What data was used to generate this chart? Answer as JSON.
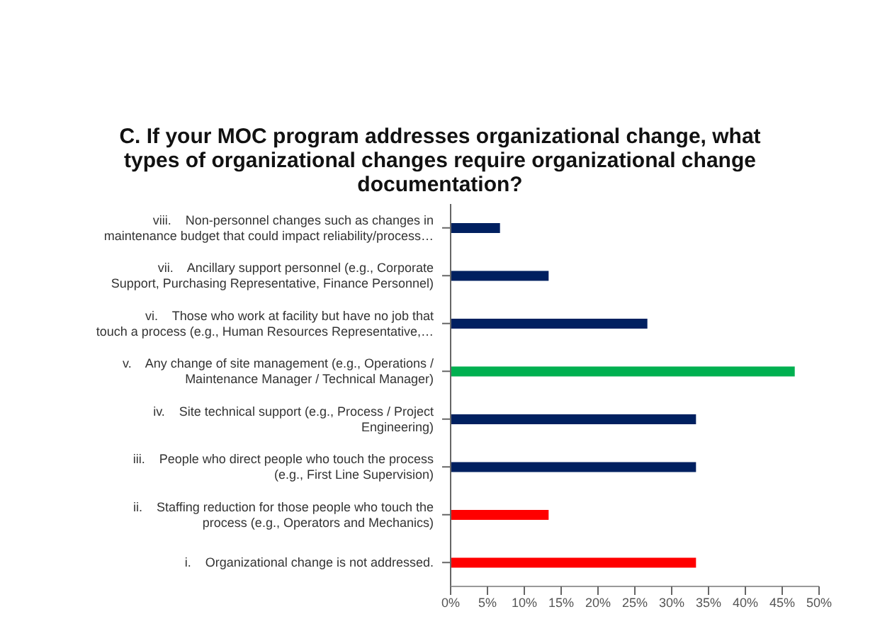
{
  "chart_data": {
    "type": "bar",
    "orientation": "horizontal",
    "title": "C. If your MOC program addresses organizational change, what types of organizational changes require organizational change documentation?",
    "categories": [
      "viii.    Non-personnel changes such as changes in maintenance budget that could impact reliability/process…",
      "vii.    Ancillary support personnel (e.g., Corporate Support, Purchasing Representative, Finance Personnel)",
      "vi.    Those who work at facility but have no job that touch a process (e.g., Human Resources Representative,…",
      "v.    Any change of site management (e.g., Operations / Maintenance Manager / Technical Manager)",
      "iv.    Site technical support (e.g., Process / Project Engineering)",
      "iii.    People who direct people who touch the process (e.g., First Line Supervision)",
      "ii.    Staffing reduction for those people who touch the process (e.g., Operators and Mechanics)",
      "i.    Organizational change is not addressed."
    ],
    "values": [
      6.7,
      13.3,
      26.7,
      46.7,
      33.3,
      33.3,
      13.3,
      33.3
    ],
    "colors": [
      "#002060",
      "#002060",
      "#002060",
      "#00b050",
      "#002060",
      "#002060",
      "#ff0000",
      "#ff0000"
    ],
    "xlim": [
      0,
      50
    ],
    "xticks": [
      {
        "value": 0,
        "label": "0%"
      },
      {
        "value": 5,
        "label": "5%"
      },
      {
        "value": 10,
        "label": "10%"
      },
      {
        "value": 15,
        "label": "15%"
      },
      {
        "value": 20,
        "label": "20%"
      },
      {
        "value": 25,
        "label": "25%"
      },
      {
        "value": 30,
        "label": "30%"
      },
      {
        "value": 35,
        "label": "35%"
      },
      {
        "value": 40,
        "label": "40%"
      },
      {
        "value": 45,
        "label": "45%"
      },
      {
        "value": 50,
        "label": "50%"
      }
    ],
    "grid": false,
    "legend": false
  }
}
